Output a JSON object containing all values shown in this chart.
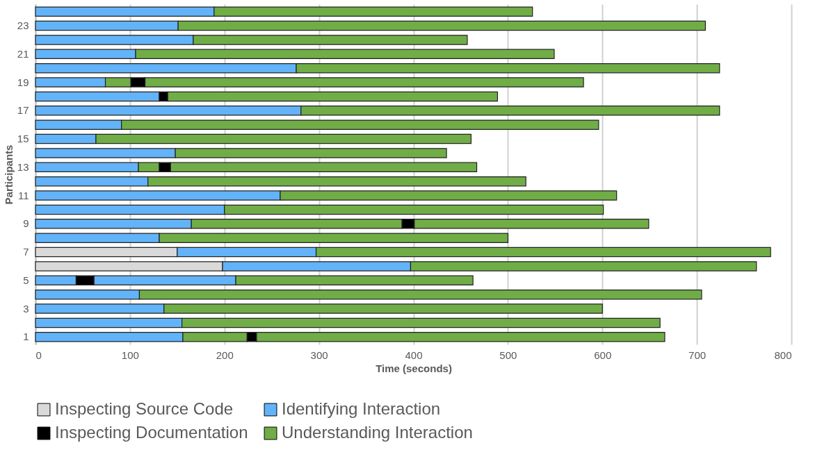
{
  "chart_data": {
    "type": "bar",
    "orientation": "horizontal",
    "stacked": true,
    "xlabel": "Time (seconds)",
    "ylabel": "Participants",
    "categories": [
      null,
      "23",
      null,
      "21",
      null,
      "19",
      null,
      "17",
      null,
      "15",
      null,
      "13",
      null,
      "11",
      null,
      "9",
      null,
      "7",
      null,
      "5",
      null,
      "3",
      null,
      "1"
    ],
    "xlim": [
      0,
      800
    ],
    "xticks": [
      0,
      100,
      200,
      300,
      400,
      500,
      600,
      700,
      800
    ],
    "grid": "x",
    "legend": "bottom",
    "series": [
      {
        "name": "Inspecting Source Code",
        "color": "#d9d9d9",
        "values": [
          null,
          null,
          null,
          null,
          null,
          null,
          null,
          null,
          null,
          null,
          null,
          null,
          null,
          null,
          null,
          null,
          null,
          150,
          198,
          null,
          null,
          null,
          null,
          null
        ]
      },
      {
        "name": "Identifying Interaction",
        "color": "#63b3f8",
        "values": [
          189,
          151,
          167,
          106,
          276,
          74,
          131,
          281,
          91,
          64,
          148,
          109,
          119,
          259,
          200,
          165,
          131,
          147,
          199,
          43,
          110,
          136,
          155,
          156
        ]
      },
      {
        "name": "Inspecting Documentation",
        "color": "#000000",
        "values": [
          null,
          null,
          null,
          null,
          null,
          null,
          9,
          null,
          null,
          null,
          null,
          null,
          null,
          null,
          null,
          null,
          null,
          null,
          null,
          19,
          null,
          null,
          null,
          null
        ]
      },
      {
        "color": "#63b3f8",
        "values": [
          null,
          null,
          null,
          null,
          null,
          null,
          null,
          null,
          null,
          null,
          null,
          null,
          null,
          null,
          null,
          null,
          null,
          null,
          null,
          150,
          null,
          null,
          null,
          null
        ]
      },
      {
        "name": "Understanding Interaction",
        "color": "#70ad47",
        "values": [
          337,
          558,
          290,
          443,
          448,
          27,
          349,
          443,
          505,
          397,
          287,
          22,
          400,
          356,
          401,
          223,
          369,
          481,
          366,
          251,
          595,
          464,
          506,
          68
        ]
      },
      {
        "color": "#000000",
        "values": [
          null,
          null,
          null,
          null,
          null,
          15,
          null,
          null,
          null,
          null,
          null,
          12,
          null,
          null,
          null,
          13,
          null,
          null,
          null,
          null,
          null,
          null,
          null,
          10
        ]
      },
      {
        "color": "#70ad47",
        "values": [
          null,
          null,
          null,
          null,
          null,
          464,
          null,
          null,
          null,
          null,
          null,
          324,
          null,
          null,
          null,
          248,
          null,
          null,
          null,
          null,
          null,
          null,
          null,
          432
        ]
      }
    ]
  }
}
